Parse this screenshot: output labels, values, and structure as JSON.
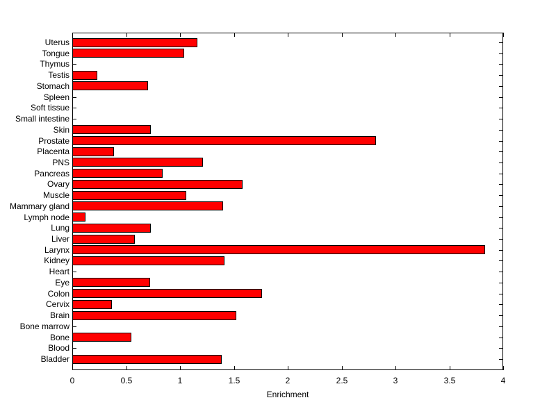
{
  "figure": {
    "background": "#ffffff",
    "axis_color": "#000000"
  },
  "chart_data": {
    "type": "bar",
    "orientation": "horizontal",
    "title": "",
    "xlabel": "Enrichment",
    "ylabel": "",
    "xlim": [
      0,
      4
    ],
    "xticks": [
      0,
      0.5,
      1,
      1.5,
      2,
      2.5,
      3,
      3.5,
      4
    ],
    "xtick_labels": [
      "0",
      "0.5",
      "1",
      "1.5",
      "2",
      "2.5",
      "3",
      "3.5",
      "4"
    ],
    "grid": false,
    "legend": false,
    "bar_color": "#ff0000",
    "bar_edge_color": "#000000",
    "categories": [
      "Uterus",
      "Tongue",
      "Thymus",
      "Testis",
      "Stomach",
      "Spleen",
      "Soft tissue",
      "Small intestine",
      "Skin",
      "Prostate",
      "Placenta",
      "PNS",
      "Pancreas",
      "Ovary",
      "Muscle",
      "Mammary gland",
      "Lymph node",
      "Lung",
      "Liver",
      "Larynx",
      "Kidney",
      "Heart",
      "Eye",
      "Colon",
      "Cervix",
      "Brain",
      "Bone marrow",
      "Bone",
      "Blood",
      "Bladder"
    ],
    "values": [
      1.16,
      1.04,
      0,
      0.23,
      0.7,
      0,
      0,
      0,
      0.73,
      2.82,
      0.39,
      1.21,
      0.84,
      1.58,
      1.06,
      1.4,
      0.12,
      0.73,
      0.58,
      3.83,
      1.41,
      0,
      0.72,
      1.76,
      0.37,
      1.52,
      0,
      0.55,
      0,
      1.39
    ]
  }
}
